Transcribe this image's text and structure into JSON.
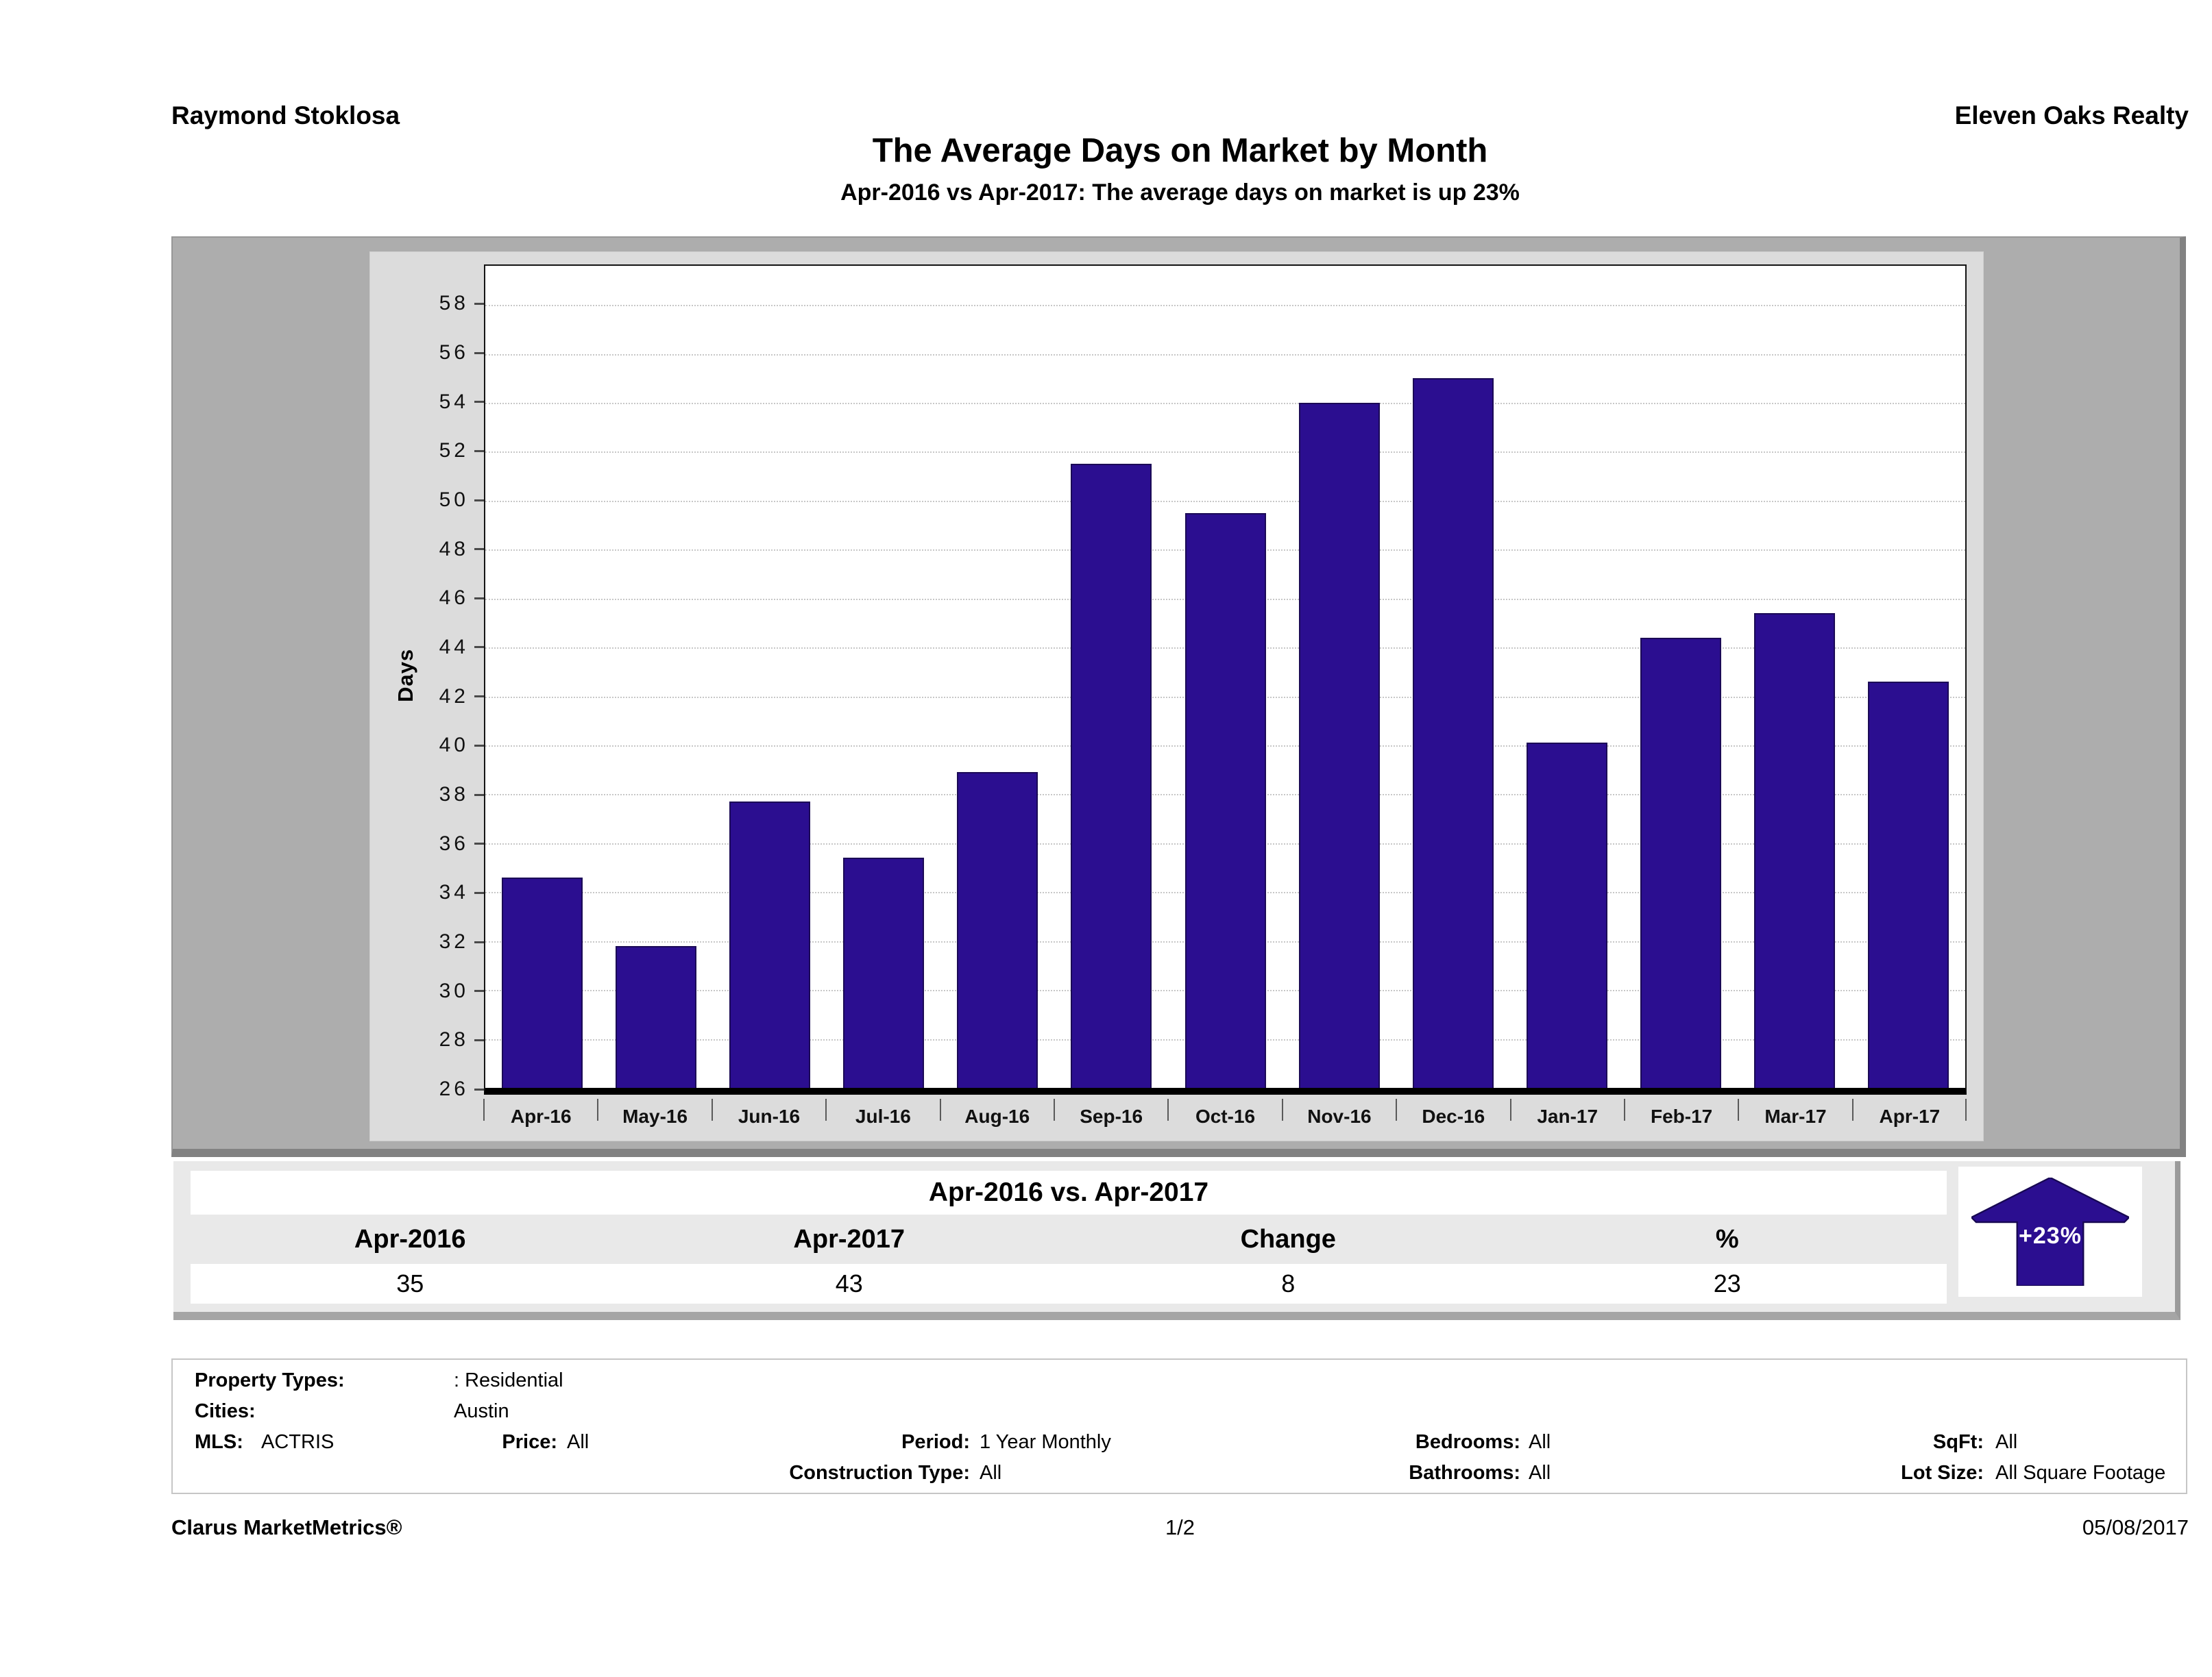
{
  "header": {
    "agent": "Raymond Stoklosa",
    "company": "Eleven Oaks Realty"
  },
  "title": "The Average Days on Market by Month",
  "subtitle": "Apr-2016 vs Apr-2017: The average days on market is up 23%",
  "chart_data": {
    "type": "bar",
    "title": "The Average Days on Market by Month",
    "ylabel": "Days",
    "xlabel": "",
    "categories": [
      "Apr-16",
      "May-16",
      "Jun-16",
      "Jul-16",
      "Aug-16",
      "Sep-16",
      "Oct-16",
      "Nov-16",
      "Dec-16",
      "Jan-17",
      "Feb-17",
      "Mar-17",
      "Apr-17"
    ],
    "values": [
      34.6,
      31.8,
      37.7,
      35.4,
      38.9,
      51.5,
      49.5,
      54,
      55,
      40.1,
      44.4,
      45.4,
      42.6
    ],
    "ylim": [
      26,
      59.6
    ],
    "ytick_min": 26,
    "ytick_max": 58,
    "ytick_step": 2,
    "grid": true,
    "legend": false,
    "bar_color": "#2b0e90"
  },
  "comparison_table": {
    "title": "Apr-2016 vs. Apr-2017",
    "columns": [
      "Apr-2016",
      "Apr-2017",
      "Change",
      "%"
    ],
    "values": [
      "35",
      "43",
      "8",
      "23"
    ],
    "badge": {
      "label": "+23%",
      "direction": "up",
      "color": "#2b0e90"
    }
  },
  "filters": {
    "property_types_label": "Property Types:",
    "property_types_value": ": Residential",
    "cities_label": "Cities:",
    "cities_value": "Austin",
    "mls_label": "MLS:",
    "mls_value": "ACTRIS",
    "price_label": "Price:",
    "price_value": "All",
    "period_label": "Period:",
    "period_value": "1 Year Monthly",
    "construction_label": "Construction Type:",
    "construction_value": "All",
    "bedrooms_label": "Bedrooms:",
    "bedrooms_value": "All",
    "bathrooms_label": "Bathrooms:",
    "bathrooms_value": "All",
    "sqft_label": "SqFt:",
    "sqft_value": "All",
    "lotsize_label": "Lot Size:",
    "lotsize_value": "All Square Footage"
  },
  "footer": {
    "left": "Clarus MarketMetrics®",
    "center": "1/2",
    "right": "05/08/2017"
  }
}
